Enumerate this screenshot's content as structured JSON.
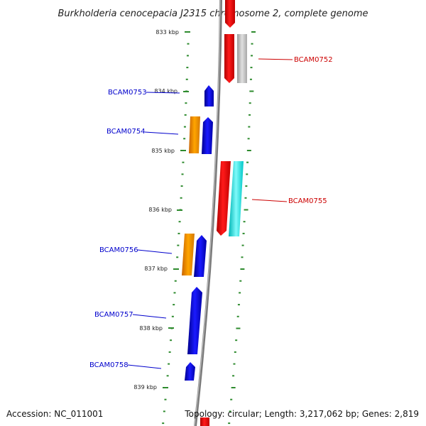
{
  "title": "Burkholderia cenocepacia J2315 chromosome 2, complete genome",
  "footer": {
    "accession": "Accession: NC_011001",
    "summary": "Topology: circular; Length: 3,217,062 bp; Genes: 2,819"
  },
  "ticks": [
    {
      "label": "833 kbp"
    },
    {
      "label": "834 kbp"
    },
    {
      "label": "835 kbp"
    },
    {
      "label": "836 kbp"
    },
    {
      "label": "837 kbp"
    },
    {
      "label": "838 kbp"
    },
    {
      "label": "839 kbp"
    }
  ],
  "genes": [
    {
      "label": "BCAM0752",
      "color": "#cc0000"
    },
    {
      "label": "BCAM0753",
      "color": "#0000cc"
    },
    {
      "label": "BCAM0754",
      "color": "#0000cc"
    },
    {
      "label": "BCAM0755",
      "color": "#cc0000"
    },
    {
      "label": "BCAM0756",
      "color": "#0000cc"
    },
    {
      "label": "BCAM0757",
      "color": "#0000cc"
    },
    {
      "label": "BCAM0758",
      "color": "#0000cc"
    }
  ],
  "colors": {
    "forward": "#ff0000",
    "reverse": "#0000ff",
    "rna": "#ff8c00",
    "cds_grey": "#c0c0c0",
    "cyan": "#00e5e5",
    "tick": "#2e8b2e",
    "backbone": "#888888"
  }
}
